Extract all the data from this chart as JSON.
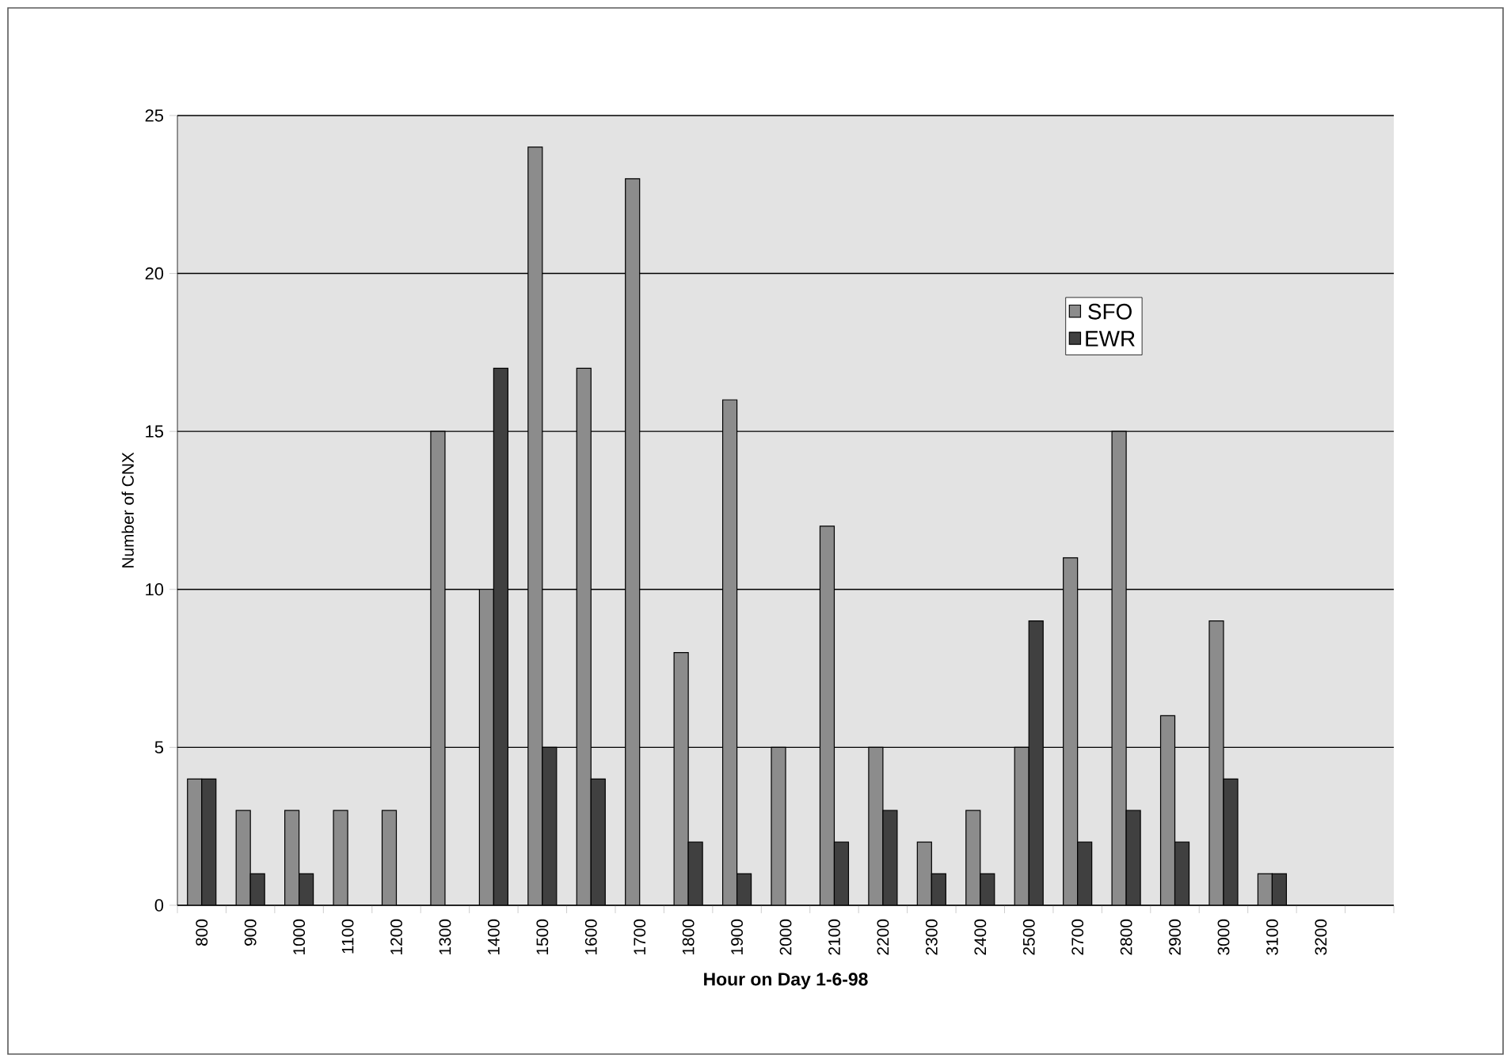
{
  "chart_data": {
    "type": "bar",
    "xlabel": "Hour on Day 1-6-98",
    "ylabel": "Number of CNX",
    "categories": [
      "800",
      "900",
      "1000",
      "1100",
      "1200",
      "1300",
      "1400",
      "1500",
      "1600",
      "1700",
      "1800",
      "1900",
      "2000",
      "2100",
      "2200",
      "2300",
      "2400",
      "2500",
      "2700",
      "2800",
      "2900",
      "3000",
      "3100",
      "3200",
      null
    ],
    "series": [
      {
        "name": "SFO",
        "color": "#8c8c8c",
        "values": [
          4,
          3,
          3,
          3,
          3,
          15,
          10,
          24,
          17,
          23,
          8,
          16,
          5,
          12,
          5,
          2,
          3,
          5,
          11,
          15,
          6,
          9,
          1,
          null,
          null
        ]
      },
      {
        "name": "EWR",
        "color": "#404040",
        "values": [
          4,
          1,
          1,
          null,
          null,
          null,
          17,
          5,
          4,
          null,
          2,
          1,
          null,
          2,
          3,
          1,
          1,
          9,
          2,
          3,
          2,
          4,
          1,
          null,
          null
        ]
      }
    ],
    "ylim": [
      0,
      25
    ],
    "yticks": [
      0,
      5,
      10,
      15,
      20,
      25
    ],
    "grid": "y",
    "legend": "top right"
  }
}
